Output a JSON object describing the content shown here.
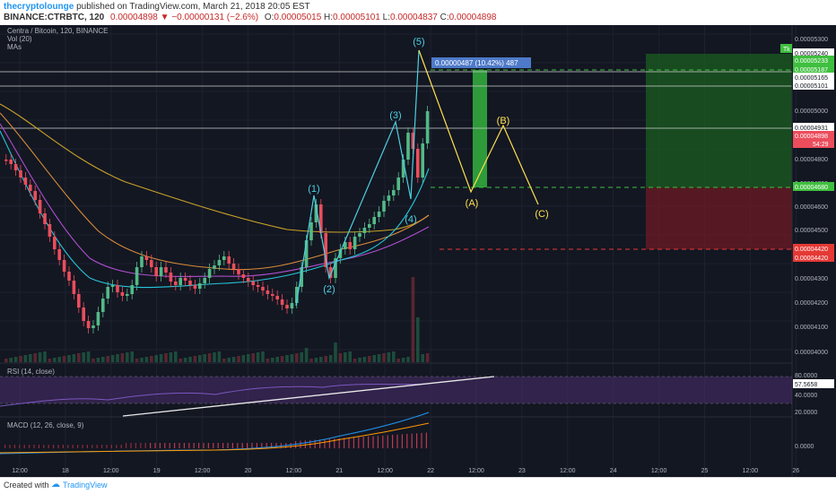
{
  "header": {
    "author": "thecryptolounge",
    "published_text": "published on TradingView.com, March 21, 2018 20:05 EST",
    "symbol_line": "BINANCE:CTRBTC, 120",
    "price": "0.00004898",
    "change": "−0.00000131 (−2.6%)",
    "o_label": "O:",
    "o": "0.00005015",
    "h_label": "H:",
    "h": "0.00005101",
    "l_label": "L:",
    "l": "0.00004837",
    "c_label": "C:",
    "c": "0.00004898"
  },
  "legend": {
    "title": "Centra / Bitcoin, 120, BINANCE",
    "vol": "Vol (20)",
    "mas": "MAs"
  },
  "chart_data": {
    "type": "line",
    "x_ticks": [
      "12:00",
      "18",
      "12:00",
      "19",
      "12:00",
      "20",
      "12:00",
      "21",
      "12:00",
      "22",
      "12:00",
      "23",
      "12:00",
      "24",
      "12:00",
      "25",
      "12:00",
      "26"
    ],
    "y_axis_labels": [
      "0.00005300",
      "0.00005240",
      "0.00005233",
      "0.00005187",
      "0.00005165",
      "0.00005101",
      "0.00005000",
      "0.00004931",
      "0.00004898",
      "54:29",
      "0.00004800",
      "0.00004700",
      "0.00004680",
      "0.00004600",
      "0.00004500",
      "0.00004420",
      "0.00004420",
      "0.00004300",
      "0.00004200",
      "0.00004100",
      "0.00004000"
    ],
    "measure_label": "0.00000487 (10.42%) 487",
    "elliott_impulse": [
      {
        "label": "(1)",
        "price": 4.64e-05
      },
      {
        "label": "(2)",
        "price": 4.29e-05
      },
      {
        "label": "(3)",
        "price": 4.94e-05
      },
      {
        "label": "(4)",
        "price": 4.6e-05
      },
      {
        "label": "(5)",
        "price": 5.24e-05
      }
    ],
    "corrective_wave": [
      {
        "label": "(A)",
        "price": 4.66e-05
      },
      {
        "label": "(B)",
        "price": 4.94e-05
      },
      {
        "label": "(C)",
        "price": 4.62e-05
      }
    ],
    "target_price": 5.187e-05,
    "stop_price": 4.42e-05,
    "entry_price": 4.68e-05,
    "last_price": 4.898e-05,
    "rsi": {
      "title": "RSI (14, close)",
      "value": "57.5658",
      "levels": [
        "80.0000",
        "57.5658",
        "40.0000",
        "20.0000"
      ]
    },
    "macd": {
      "title": "MACD (12, 26, close, 9)",
      "levels": [
        "0.0000"
      ]
    },
    "tp_badge": "Tk"
  },
  "footer": {
    "created_with": "Created with",
    "brand": "TradingView"
  },
  "colors": {
    "bg": "#131722",
    "up": "#53b987",
    "down": "#eb4d5c",
    "wave": "#4dd0e1",
    "abc": "#ffe24f"
  }
}
